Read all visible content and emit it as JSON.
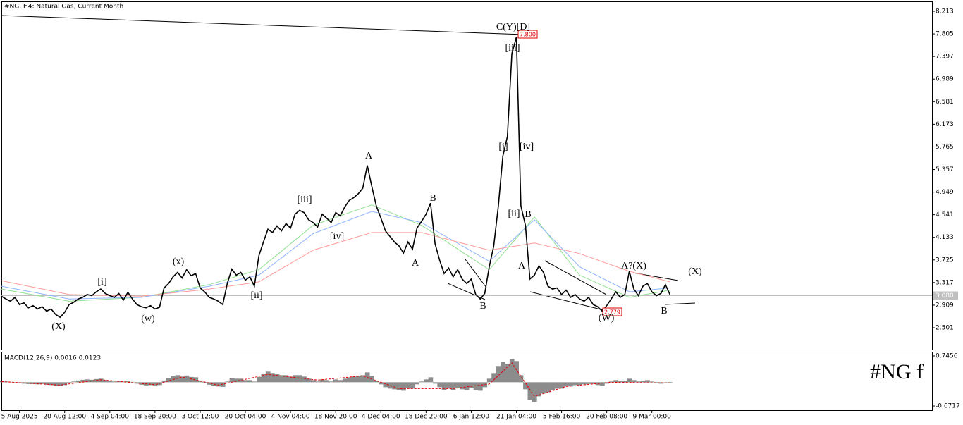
{
  "chart_data": [
    {
      "type": "line",
      "title": "#NG, H4:  Natural Gas, Current Month",
      "watermark": "#NG f",
      "ylim": [
        2.107,
        8.391
      ],
      "xlim": [
        0,
        206
      ],
      "yticks": [
        8.213,
        7.805,
        7.397,
        6.989,
        6.581,
        6.173,
        5.765,
        5.357,
        4.949,
        4.541,
        4.133,
        3.725,
        3.317,
        2.909,
        2.501
      ],
      "current_price": {
        "value": 3.08,
        "label": "3.080"
      },
      "price_labels": [
        {
          "value": 7.8,
          "label": "7.800"
        },
        {
          "value": 2.779,
          "label": "2.779"
        }
      ],
      "annotations": [
        "C(Y)[D]",
        "[iii]",
        "[i]",
        "[iv]",
        "[ii]",
        "B",
        "A",
        "B",
        "A",
        "B",
        "A",
        "[iii]",
        "[iv]",
        "(x)",
        "[i]",
        "(X)",
        "(w)",
        "[ii]",
        "A?(X)",
        "(X)",
        "(W)",
        "B"
      ],
      "series": [
        {
          "color": "#000000",
          "values": [
            3.07,
            3.02,
            2.98,
            3.05,
            2.92,
            2.95,
            2.86,
            2.9,
            2.84,
            2.88,
            2.8,
            2.84,
            2.74,
            2.69,
            2.78,
            2.92,
            2.96,
            3.02,
            3.05,
            3.1,
            3.08,
            3.15,
            3.2,
            3.12,
            3.08,
            3.05,
            3.12,
            3.0,
            3.14,
            3.02,
            2.92,
            2.88,
            2.86,
            2.9,
            2.84,
            2.87,
            3.22,
            3.3,
            3.42,
            3.5,
            3.4,
            3.55,
            3.44,
            3.48,
            3.22,
            3.15,
            3.05,
            3.02,
            2.98,
            2.92,
            3.3,
            3.56,
            3.45,
            3.5,
            3.36,
            3.42,
            3.25,
            3.8,
            4.05,
            4.28,
            4.22,
            4.34,
            4.25,
            4.38,
            4.3,
            4.55,
            4.62,
            4.58,
            4.45,
            4.4,
            4.32,
            4.55,
            4.48,
            4.4,
            4.58,
            4.52,
            4.68,
            4.8,
            4.85,
            4.92,
            5.02,
            5.43,
            5.05,
            4.7,
            4.48,
            4.25,
            4.15,
            4.05,
            3.98,
            3.85,
            4.05,
            3.92,
            4.3,
            4.42,
            4.55,
            4.75,
            4.02,
            3.72,
            3.48,
            3.58,
            3.42,
            3.55,
            3.38,
            3.3,
            3.38,
            3.1,
            3.02,
            3.12,
            3.6,
            3.98,
            4.7,
            5.6,
            5.95,
            7.45,
            7.75,
            4.7,
            4.35,
            3.38,
            3.45,
            3.62,
            3.5,
            3.25,
            3.2,
            3.22,
            3.1,
            3.18,
            3.05,
            3.1,
            3.02,
            2.98,
            3.05,
            2.92,
            2.88,
            2.8,
            2.9,
            3.02,
            3.15,
            3.05,
            3.1,
            3.52,
            3.2,
            3.08,
            3.25,
            3.3,
            3.15,
            3.08,
            3.12,
            3.28,
            3.1
          ]
        },
        {
          "color": "#ff9a9a",
          "x": [
            0,
            15,
            31,
            46,
            57,
            69,
            82,
            93,
            108,
            118,
            128,
            139,
            148
          ],
          "values": [
            3.35,
            3.1,
            3.07,
            3.2,
            3.33,
            3.9,
            4.22,
            4.22,
            3.9,
            4.03,
            3.84,
            3.52,
            3.33
          ]
        },
        {
          "color": "#8fb4ff",
          "x": [
            0,
            15,
            31,
            46,
            57,
            69,
            82,
            93,
            108,
            118,
            128,
            139,
            148
          ],
          "values": [
            3.25,
            3.02,
            3.05,
            3.25,
            3.45,
            4.2,
            4.6,
            4.4,
            3.7,
            4.45,
            3.6,
            3.15,
            3.22
          ]
        },
        {
          "color": "#8fe08f",
          "x": [
            0,
            15,
            31,
            46,
            57,
            69,
            82,
            93,
            108,
            118,
            128,
            139,
            148
          ],
          "values": [
            3.2,
            2.98,
            3.05,
            3.28,
            3.55,
            4.35,
            4.72,
            4.35,
            3.55,
            4.5,
            3.45,
            3.05,
            3.18
          ]
        }
      ]
    },
    {
      "type": "bar",
      "title": "MACD(12,26,9) 0.0016 0.0123",
      "color": "#8c8c8c",
      "ylim": [
        -0.791,
        0.865
      ],
      "yticks": [
        0.7456,
        -0.6717
      ],
      "xlim": [
        0,
        206
      ],
      "values": [
        0.03,
        0.02,
        0.01,
        -0.02,
        -0.03,
        -0.04,
        -0.05,
        -0.05,
        -0.06,
        -0.05,
        -0.07,
        -0.08,
        -0.1,
        -0.11,
        -0.08,
        -0.03,
        0.02,
        0.05,
        0.07,
        0.08,
        0.07,
        0.09,
        0.1,
        0.06,
        0.03,
        0.02,
        0.04,
        0.02,
        0.04,
        0.01,
        -0.04,
        -0.07,
        -0.09,
        -0.08,
        -0.09,
        -0.08,
        0.05,
        0.12,
        0.17,
        0.2,
        0.16,
        0.19,
        0.15,
        0.14,
        0.05,
        -0.02,
        -0.07,
        -0.1,
        -0.12,
        -0.13,
        0.02,
        0.12,
        0.1,
        0.1,
        0.06,
        0.06,
        0.02,
        0.15,
        0.24,
        0.3,
        0.26,
        0.24,
        0.2,
        0.2,
        0.16,
        0.2,
        0.2,
        0.16,
        0.1,
        0.06,
        0.02,
        0.08,
        0.06,
        0.02,
        0.08,
        0.06,
        0.1,
        0.14,
        0.16,
        0.18,
        0.2,
        0.28,
        0.18,
        0.04,
        -0.06,
        -0.14,
        -0.18,
        -0.2,
        -0.22,
        -0.24,
        -0.16,
        -0.18,
        -0.06,
        0.02,
        0.08,
        0.14,
        -0.04,
        -0.14,
        -0.22,
        -0.18,
        -0.22,
        -0.16,
        -0.2,
        -0.22,
        -0.16,
        -0.22,
        -0.24,
        -0.14,
        0.1,
        0.26,
        0.46,
        0.58,
        0.52,
        0.66,
        0.6,
        0.2,
        -0.2,
        -0.5,
        -0.56,
        -0.4,
        -0.32,
        -0.28,
        -0.22,
        -0.18,
        -0.18,
        -0.12,
        -0.12,
        -0.08,
        -0.08,
        -0.06,
        -0.05,
        -0.05,
        -0.08,
        -0.1,
        -0.04,
        0.02,
        0.06,
        0.04,
        0.04,
        0.1,
        0.06,
        0.02,
        0.04,
        0.06,
        0.02,
        -0.02,
        -0.04,
        0.0,
        -0.02
      ],
      "signal": {
        "color": "#e00000",
        "x": [
          0,
          13,
          22,
          34,
          40,
          48,
          59,
          70,
          80,
          88,
          100,
          108,
          113,
          118,
          125,
          135,
          148
        ],
        "values": [
          0.02,
          -0.08,
          0.07,
          -0.07,
          0.15,
          -0.08,
          0.22,
          0.06,
          0.18,
          -0.18,
          -0.18,
          -0.05,
          0.55,
          -0.4,
          -0.12,
          0.0,
          -0.02
        ]
      },
      "xticks": [
        {
          "value": 4,
          "label": "5 Aug 2025"
        },
        {
          "value": 14,
          "label": "20 Aug 12:00"
        },
        {
          "value": 24,
          "label": "4 Sep 04:00"
        },
        {
          "value": 34,
          "label": "18 Sep 20:00"
        },
        {
          "value": 44,
          "label": "3 Oct 12:00"
        },
        {
          "value": 54,
          "label": "20 Oct 04:00"
        },
        {
          "value": 64,
          "label": "4 Nov 04:00"
        },
        {
          "value": 74,
          "label": "18 Nov 20:00"
        },
        {
          "value": 84,
          "label": "4 Dec 04:00"
        },
        {
          "value": 94,
          "label": "18 Dec 20:00"
        },
        {
          "value": 104,
          "label": "6 Jan 12:00"
        },
        {
          "value": 114,
          "label": "21 Jan 04:00"
        },
        {
          "value": 124,
          "label": "5 Feb 16:00"
        },
        {
          "value": 134,
          "label": "20 Feb 08:00"
        },
        {
          "value": 144,
          "label": "9 Mar 00:00"
        }
      ]
    }
  ]
}
